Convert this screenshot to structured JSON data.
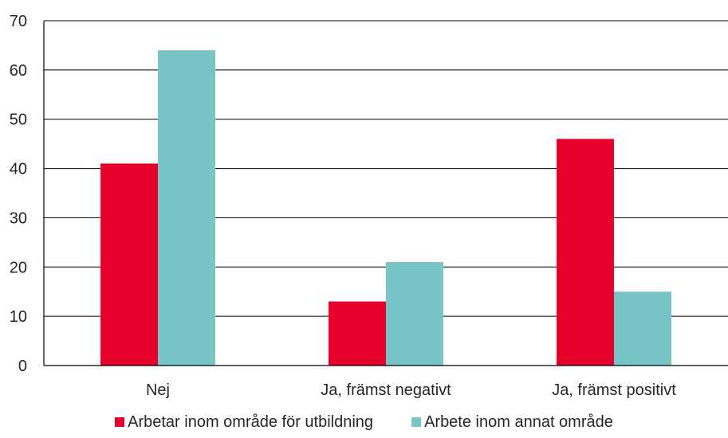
{
  "chart_data": {
    "type": "bar",
    "categories": [
      "Nej",
      "Ja, främst negativt",
      "Ja, främst positivt"
    ],
    "series": [
      {
        "name": "Arbetar inom område för utbildning",
        "values": [
          41,
          13,
          46
        ],
        "color": "#e4002b"
      },
      {
        "name": "Arbete inom annat område",
        "values": [
          64,
          21,
          15
        ],
        "color": "#78c5c8"
      }
    ],
    "ylim": [
      0,
      70
    ],
    "yticks": [
      0,
      10,
      20,
      30,
      40,
      50,
      60,
      70
    ],
    "grid": true,
    "legend": "bottom"
  }
}
